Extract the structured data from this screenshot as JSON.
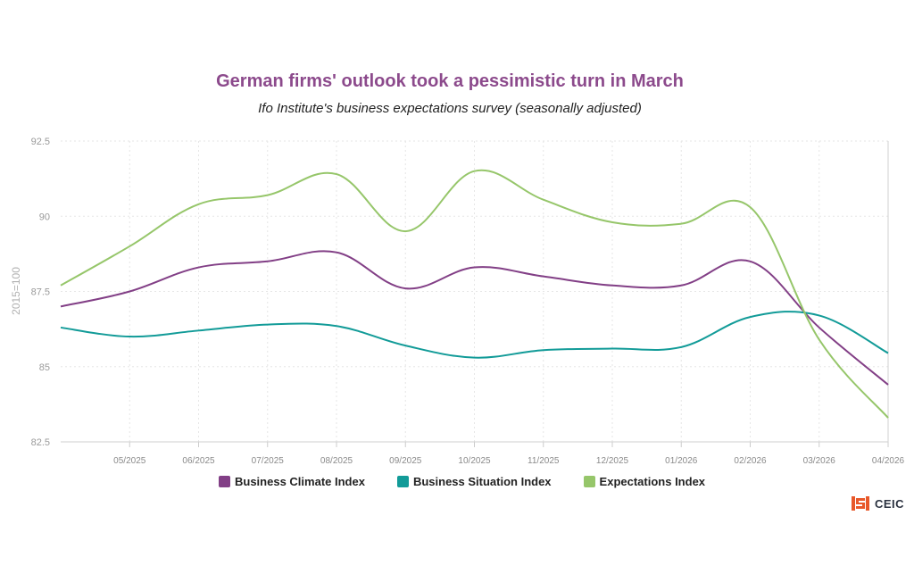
{
  "chart_data": {
    "type": "line",
    "title": "German firms' outlook took a pessimistic turn in March",
    "subtitle": "Ifo Institute's business expectations survey (seasonally adjusted)",
    "ylabel": "2015=100",
    "xlabel": "",
    "ylim": [
      82.5,
      92.5
    ],
    "yticks": [
      82.5,
      85,
      87.5,
      90,
      92.5
    ],
    "ytick_labels": [
      "82.5",
      "85",
      "87.5",
      "90",
      "92.5"
    ],
    "x": [
      "04/2025",
      "05/2025",
      "06/2025",
      "07/2025",
      "08/2025",
      "09/2025",
      "10/2025",
      "11/2025",
      "12/2025",
      "01/2026",
      "02/2026",
      "03/2026",
      "04/2026"
    ],
    "x_tick_labels": [
      "05/2025",
      "06/2025",
      "07/2025",
      "08/2025",
      "09/2025",
      "10/2025",
      "11/2025",
      "12/2025",
      "01/2026",
      "02/2026",
      "03/2026",
      "04/2026"
    ],
    "grid": true,
    "legend_position": "bottom",
    "series": [
      {
        "name": "Business Climate Index",
        "color": "#823f86",
        "values": [
          87.0,
          87.5,
          88.3,
          88.5,
          88.8,
          87.6,
          88.3,
          88.0,
          87.7,
          87.7,
          88.5,
          86.3,
          84.4
        ]
      },
      {
        "name": "Business Situation Index",
        "color": "#129b98",
        "values": [
          86.3,
          86.0,
          86.2,
          86.4,
          86.35,
          85.7,
          85.3,
          85.55,
          85.6,
          85.65,
          86.65,
          86.7,
          85.45
        ]
      },
      {
        "name": "Expectations Index",
        "color": "#96c66a",
        "values": [
          87.7,
          89.0,
          90.4,
          90.7,
          91.4,
          89.5,
          91.5,
          90.55,
          89.8,
          89.75,
          90.3,
          85.9,
          83.3
        ]
      }
    ]
  },
  "brand": {
    "name": "CEIC",
    "color": "#e8582a"
  }
}
